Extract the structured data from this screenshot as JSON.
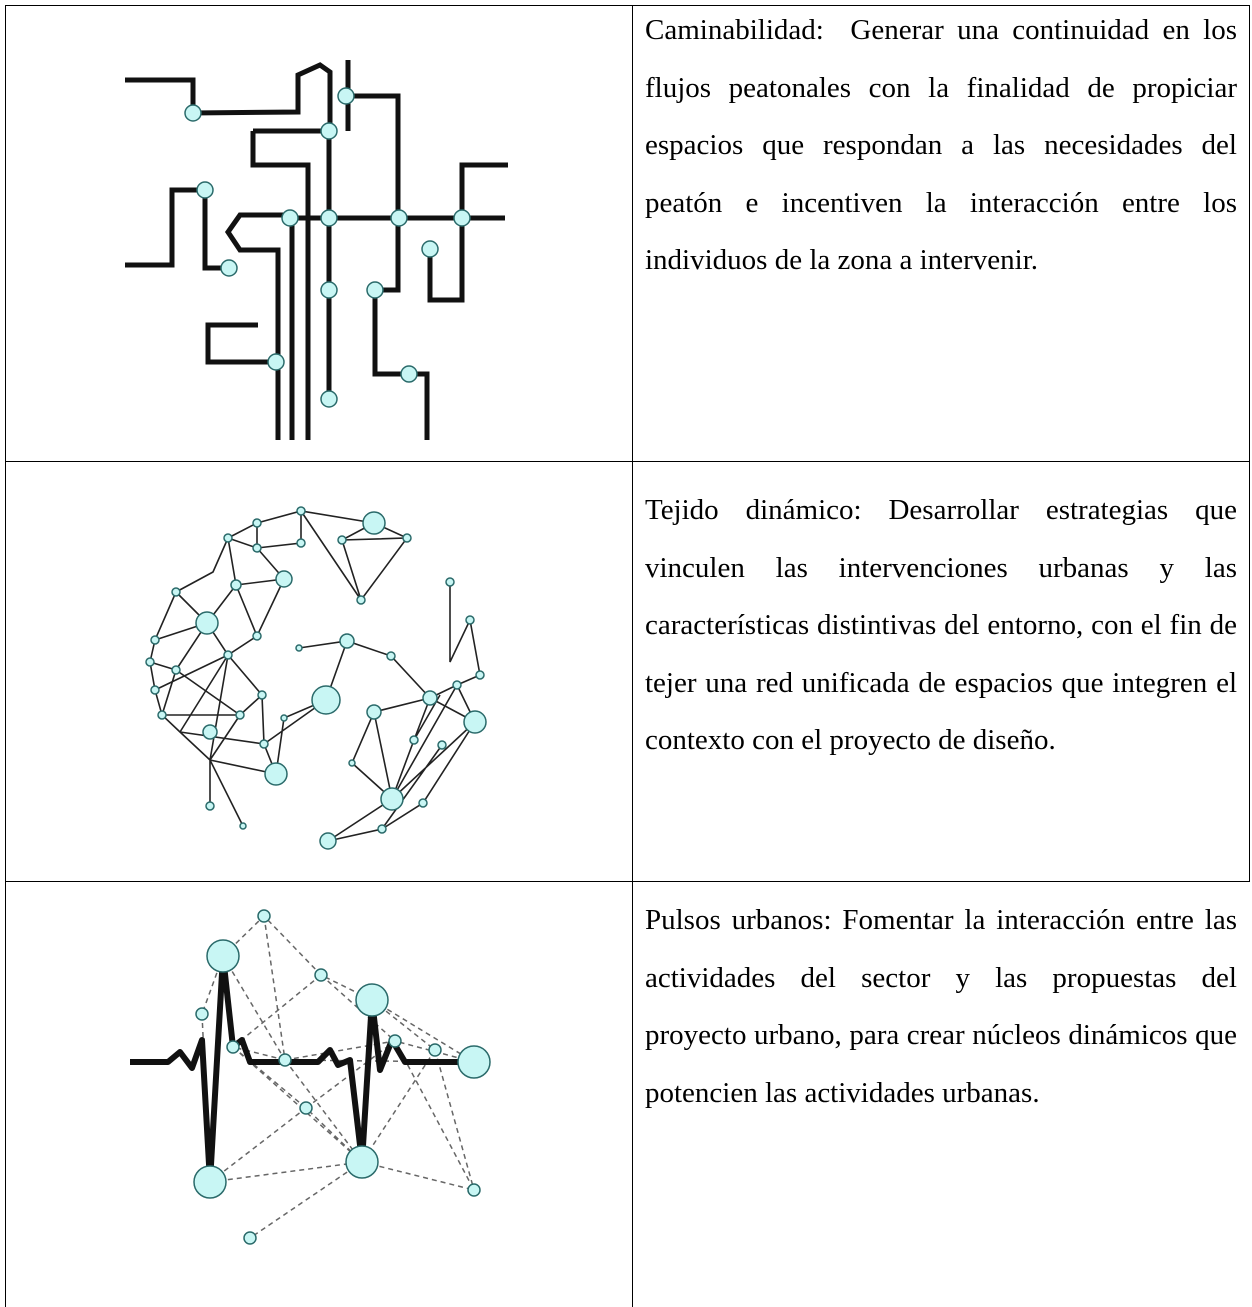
{
  "table": {
    "rows": [
      {
        "text": "Caminabilidad:  Generar una continuidad en los flujos peatonales con la finalidad de propiciar espacios que respondan a las necesidades del peatón e incentiven la interacción entre los individuos de la zona a intervenir."
      },
      {
        "text": "Tejido dinámico: Desarrollar estrategias que vinculen las intervenciones urbanas y las características distintivas del entorno, con el fin de tejer una red unificada de espacios que integren el contexto con el proyecto de diseño."
      },
      {
        "text": "Pulsos urbanos: Fomentar la interacción entre las actividades del sector y las propuestas del proyecto urbano, para crear núcleos dinámicos que potencien las actividades urbanas."
      }
    ]
  }
}
